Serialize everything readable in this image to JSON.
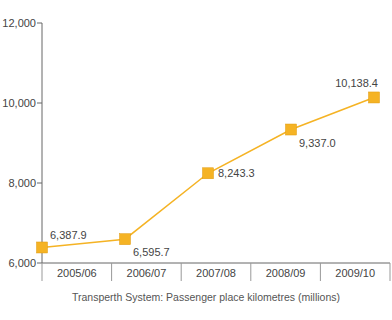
{
  "chart_data": {
    "type": "line",
    "title": "Transperth System: Passenger place kilometres (millions)",
    "categories": [
      "2005/06",
      "2006/07",
      "2007/08",
      "2008/09",
      "2009/10"
    ],
    "values": [
      6387.9,
      6595.7,
      8243.3,
      9337.0,
      10138.4
    ],
    "value_labels": [
      "6,387.9",
      "6,595.7",
      "8,243.3",
      "9,337.0",
      "10,138.4"
    ],
    "color": "#f5b324",
    "marker": "square",
    "data_labels": true,
    "grid": false,
    "ylim": [
      6000,
      12000
    ],
    "yticks": [
      {
        "value": 6000,
        "label": "6,000"
      },
      {
        "value": 8000,
        "label": "8,000"
      },
      {
        "value": 10000,
        "label": "10,000"
      },
      {
        "value": 12000,
        "label": "12,000"
      }
    ]
  }
}
